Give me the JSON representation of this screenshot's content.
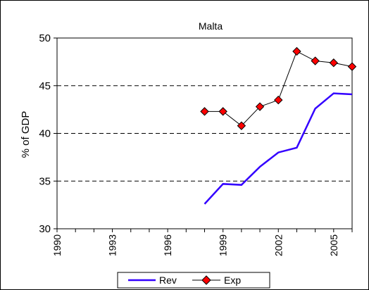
{
  "chart_data": {
    "type": "line",
    "title": "Malta",
    "xlabel": "",
    "ylabel": "% of GDP",
    "xlim": [
      1990,
      2006
    ],
    "ylim": [
      30,
      50
    ],
    "x_ticks": [
      1990,
      1993,
      1996,
      1999,
      2002,
      2005
    ],
    "y_ticks": [
      30,
      35,
      40,
      45,
      50
    ],
    "grid": "horizontal dashed",
    "legend": "bottom-center",
    "series": [
      {
        "name": "Rev",
        "color": "#3300ff",
        "marker": "none",
        "x": [
          1998,
          1999,
          2000,
          2001,
          2002,
          2003,
          2004,
          2005,
          2006
        ],
        "values": [
          32.6,
          34.7,
          34.6,
          36.5,
          38.0,
          38.5,
          42.6,
          44.2,
          44.1
        ]
      },
      {
        "name": "Exp",
        "color": "#000000",
        "marker": "diamond",
        "marker_color": "#ff0000",
        "x": [
          1998,
          1999,
          2000,
          2001,
          2002,
          2003,
          2004,
          2005,
          2006
        ],
        "values": [
          42.3,
          42.3,
          40.8,
          42.8,
          43.5,
          48.6,
          47.6,
          47.4,
          47.0
        ]
      }
    ]
  }
}
